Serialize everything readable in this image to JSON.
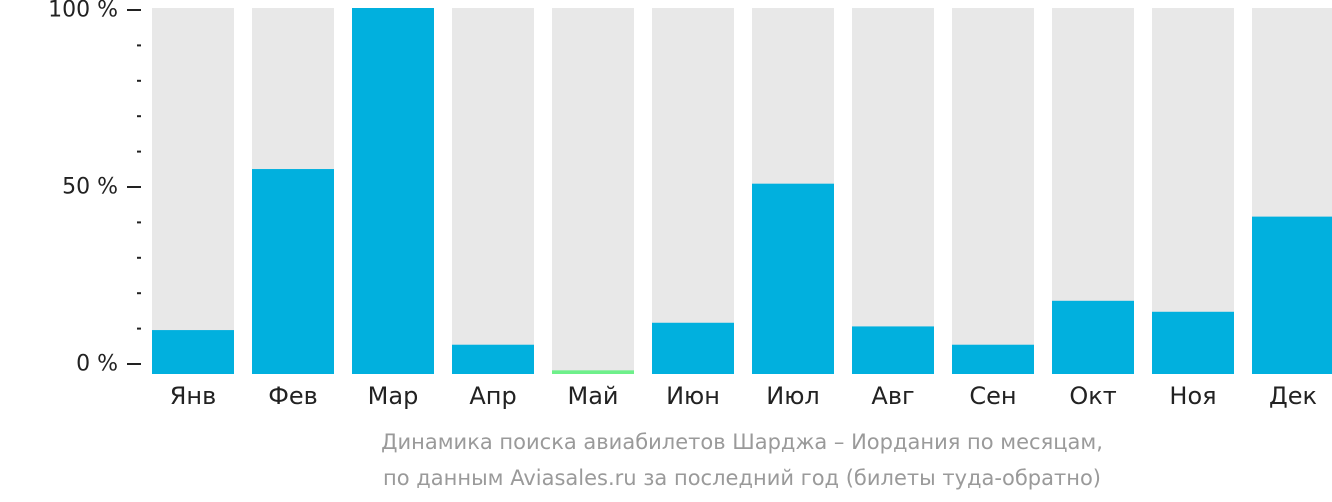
{
  "chart_data": {
    "type": "bar",
    "categories": [
      "Янв",
      "Фев",
      "Мар",
      "Апр",
      "Май",
      "Июн",
      "Июл",
      "Авг",
      "Сен",
      "Окт",
      "Ноя",
      "Дек"
    ],
    "values": [
      12,
      56,
      100,
      8,
      1,
      14,
      52,
      13,
      8,
      20,
      17,
      43
    ],
    "highlight_index": 4,
    "ylim": [
      0,
      100
    ],
    "yticks": [
      {
        "value": 0,
        "label": "0 %"
      },
      {
        "value": 50,
        "label": "50 %"
      },
      {
        "value": 100,
        "label": "100 %"
      }
    ],
    "minor_tick_step": 10,
    "grid": false,
    "title": "",
    "xlabel": "",
    "ylabel": ""
  },
  "caption": {
    "line1": "Динамика поиска авиабилетов Шарджа – Иордания по месяцам,",
    "line2": "по данным Aviasales.ru за последний год (билеты туда-обратно)"
  },
  "colors": {
    "bar": "#01b0de",
    "bar_highlight": "#6ef08a",
    "bar_background": "#e8e8e8",
    "axis": "#222222",
    "caption": "#9a9a9a"
  }
}
